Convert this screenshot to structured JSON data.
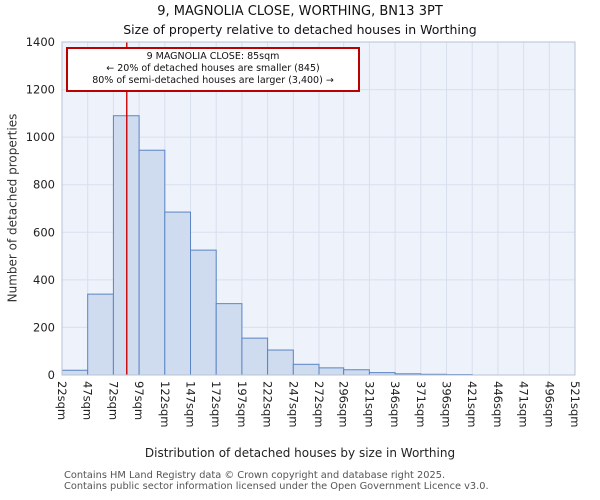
{
  "header": {
    "title": "9, MAGNOLIA CLOSE, WORTHING, BN13 3PT",
    "subtitle": "Size of property relative to detached houses in Worthing"
  },
  "chart_data": {
    "type": "bar",
    "title": "9, MAGNOLIA CLOSE, WORTHING, BN13 3PT",
    "subtitle": "Size of property relative to detached houses in Worthing",
    "xlabel": "Distribution of detached houses by size in Worthing",
    "ylabel": "Number of detached properties",
    "ylim": [
      0,
      1400
    ],
    "yticks": [
      0,
      200,
      400,
      600,
      800,
      1000,
      1200,
      1400
    ],
    "bin_edges": [
      22,
      47,
      72,
      97,
      122,
      147,
      172,
      197,
      222,
      247,
      272,
      296,
      321,
      346,
      371,
      396,
      421,
      446,
      471,
      496,
      521
    ],
    "tick_labels": [
      "22sqm",
      "47sqm",
      "72sqm",
      "97sqm",
      "122sqm",
      "147sqm",
      "172sqm",
      "197sqm",
      "222sqm",
      "247sqm",
      "272sqm",
      "296sqm",
      "321sqm",
      "346sqm",
      "371sqm",
      "396sqm",
      "421sqm",
      "446sqm",
      "471sqm",
      "496sqm",
      "521sqm"
    ],
    "values": [
      20,
      340,
      1090,
      945,
      685,
      525,
      300,
      155,
      105,
      45,
      30,
      22,
      10,
      5,
      3,
      2,
      0,
      0,
      0,
      0
    ],
    "marker": {
      "value": 85,
      "color": "#cc0000"
    },
    "annotation": {
      "line1": "9 MAGNOLIA CLOSE: 85sqm",
      "line2": "← 20% of detached houses are smaller (845)",
      "line3": "80% of semi-detached houses are larger (3,400) →"
    },
    "grid": true,
    "legend": null,
    "colors": {
      "bar_fill": "#cfdcf0",
      "bar_stroke": "#5b84c4",
      "grid": "#d8dfee",
      "plot_bg": "#eef2fa",
      "marker": "#cc0000"
    }
  },
  "footer": {
    "line1": "Contains HM Land Registry data © Crown copyright and database right 2025.",
    "line2": "Contains public sector information licensed under the Open Government Licence v3.0."
  }
}
